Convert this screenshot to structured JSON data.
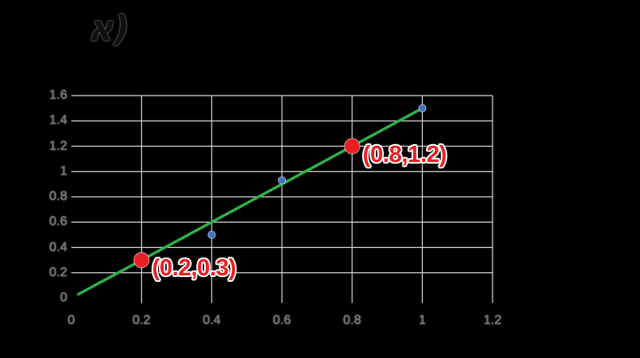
{
  "section_label": "א)",
  "chart_data": {
    "type": "scatter",
    "title": "",
    "xlabel": "",
    "ylabel": "",
    "x_axis": {
      "min": 0,
      "max": 1.2,
      "tick_values": [
        0,
        0.2,
        0.4,
        0.6,
        0.8,
        1,
        1.2
      ],
      "tick_labels": [
        "0",
        "0.2",
        "0.4",
        "0.6",
        "0.8",
        "1",
        "1.2"
      ]
    },
    "y_axis": {
      "min": 0,
      "max": 1.6,
      "tick_values": [
        0,
        0.2,
        0.4,
        0.6,
        0.8,
        1,
        1.2,
        1.4,
        1.6
      ],
      "tick_labels": [
        "0",
        "0.2",
        "0.4",
        "0.6",
        "0.8",
        "1",
        "1.2",
        "1.4",
        "1.6"
      ]
    },
    "grid": true,
    "legend": "none",
    "series": [
      {
        "name": "trendline",
        "type": "line",
        "color": "#2eb24a",
        "points": [
          [
            0.02,
            0.03
          ],
          [
            1.0,
            1.5
          ]
        ]
      },
      {
        "name": "measured-points",
        "type": "scatter",
        "color": "#4472c4",
        "points": [
          [
            0.4,
            0.5
          ],
          [
            0.6,
            0.93
          ],
          [
            1.0,
            1.5
          ]
        ]
      },
      {
        "name": "highlighted-points",
        "type": "scatter",
        "color": "#ec2024",
        "points": [
          [
            0.2,
            0.3
          ],
          [
            0.8,
            1.2
          ]
        ]
      }
    ],
    "annotations": [
      {
        "text": "(0.2,0.3)",
        "x": 0.2,
        "y": 0.3,
        "color": "#ec2024"
      },
      {
        "text": "(0.8,1.2)",
        "x": 0.8,
        "y": 1.2,
        "color": "#ec2024"
      }
    ],
    "colors": {
      "background": "#000000",
      "gridline": "#d8d8d8",
      "axis_label": "#6e6e6e",
      "trendline": "#2eb24a",
      "measured_point": "#4472c4",
      "highlighted_point": "#ec2024"
    }
  }
}
